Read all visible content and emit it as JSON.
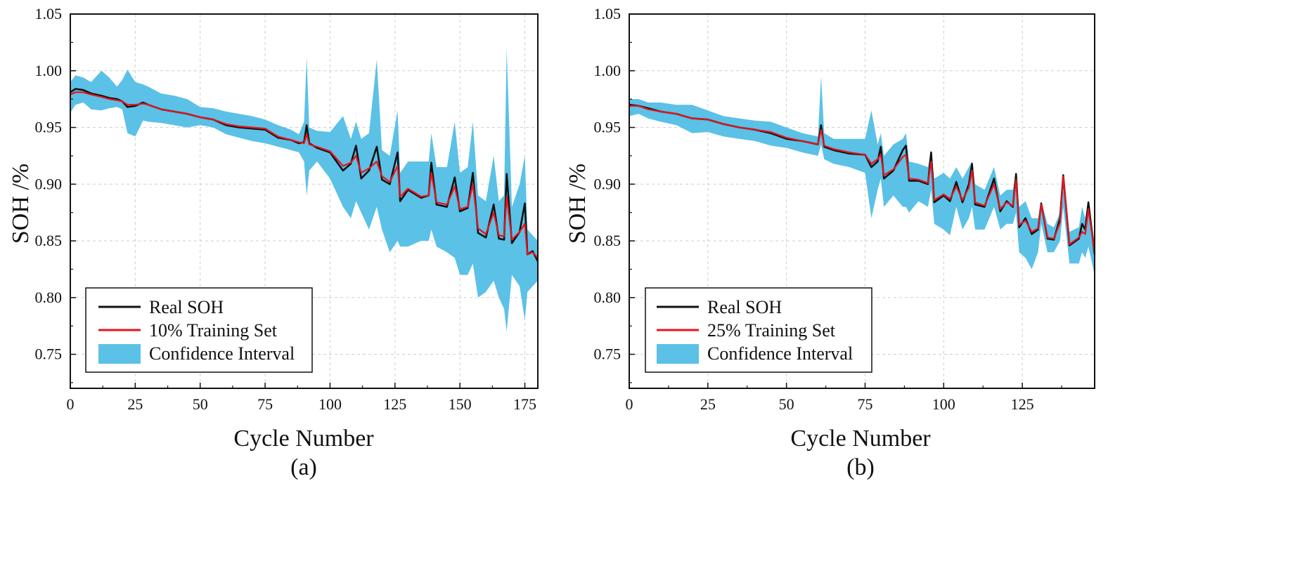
{
  "panels": [
    {
      "caption": "(a)",
      "ylabel": "SOH /%",
      "xlabel": "Cycle Number",
      "legend": [
        "Real SOH",
        "10% Training Set",
        "Confidence Interval"
      ]
    },
    {
      "caption": "(b)",
      "ylabel": "SOH /%",
      "xlabel": "Cycle Number",
      "legend": [
        "Real SOH",
        "25% Training Set",
        "Confidence Interval"
      ]
    }
  ],
  "colors": {
    "real": "#111111",
    "pred": "#e8141c",
    "ci": "#5bc1e6"
  },
  "chart_data": [
    {
      "type": "line",
      "title": "",
      "xlabel": "Cycle Number",
      "ylabel": "SOH /%",
      "xlim": [
        0,
        180
      ],
      "ylim": [
        0.72,
        1.05
      ],
      "xticks": [
        0,
        25,
        50,
        75,
        100,
        125,
        150,
        175
      ],
      "yticks": [
        0.75,
        0.8,
        0.85,
        0.9,
        0.95,
        1.0,
        1.05
      ],
      "grid": true,
      "legend_position": "bottom-left",
      "caption": "(a)",
      "series": [
        {
          "name": "Real SOH",
          "x": [
            0,
            2,
            5,
            8,
            12,
            15,
            18,
            20,
            22,
            25,
            28,
            30,
            35,
            40,
            45,
            50,
            55,
            60,
            65,
            70,
            75,
            80,
            85,
            88,
            90,
            91,
            92,
            95,
            100,
            105,
            108,
            110,
            112,
            115,
            118,
            120,
            123,
            126,
            127,
            130,
            135,
            138,
            139,
            141,
            145,
            148,
            150,
            153,
            155,
            157,
            160,
            163,
            165,
            167,
            168,
            170,
            173,
            175,
            176,
            178,
            180
          ],
          "y": [
            0.981,
            0.984,
            0.983,
            0.98,
            0.978,
            0.976,
            0.975,
            0.973,
            0.968,
            0.969,
            0.972,
            0.97,
            0.966,
            0.964,
            0.962,
            0.959,
            0.957,
            0.952,
            0.95,
            0.949,
            0.948,
            0.941,
            0.939,
            0.936,
            0.937,
            0.952,
            0.936,
            0.932,
            0.928,
            0.912,
            0.918,
            0.934,
            0.905,
            0.912,
            0.933,
            0.904,
            0.9,
            0.928,
            0.885,
            0.895,
            0.888,
            0.89,
            0.919,
            0.882,
            0.88,
            0.906,
            0.876,
            0.879,
            0.91,
            0.857,
            0.853,
            0.882,
            0.852,
            0.851,
            0.909,
            0.848,
            0.858,
            0.883,
            0.838,
            0.841,
            0.832
          ]
        },
        {
          "name": "10% Training Set",
          "x": [
            0,
            2,
            5,
            8,
            12,
            15,
            18,
            20,
            22,
            25,
            28,
            30,
            35,
            40,
            45,
            50,
            55,
            60,
            65,
            70,
            75,
            80,
            85,
            88,
            90,
            91,
            92,
            95,
            100,
            105,
            108,
            110,
            112,
            115,
            118,
            120,
            123,
            126,
            127,
            130,
            135,
            138,
            139,
            141,
            145,
            148,
            150,
            153,
            155,
            157,
            160,
            163,
            165,
            167,
            168,
            170,
            173,
            175,
            176,
            178,
            180
          ],
          "y": [
            0.979,
            0.981,
            0.981,
            0.979,
            0.977,
            0.975,
            0.974,
            0.973,
            0.97,
            0.97,
            0.971,
            0.97,
            0.966,
            0.964,
            0.962,
            0.959,
            0.957,
            0.953,
            0.951,
            0.95,
            0.949,
            0.942,
            0.939,
            0.937,
            0.936,
            0.944,
            0.935,
            0.933,
            0.929,
            0.916,
            0.919,
            0.925,
            0.91,
            0.914,
            0.92,
            0.907,
            0.902,
            0.916,
            0.889,
            0.896,
            0.889,
            0.89,
            0.91,
            0.884,
            0.882,
            0.898,
            0.878,
            0.88,
            0.9,
            0.861,
            0.856,
            0.875,
            0.855,
            0.854,
            0.889,
            0.851,
            0.858,
            0.865,
            0.838,
            0.84,
            0.835
          ]
        },
        {
          "name": "Confidence Interval",
          "x": [
            0,
            2,
            5,
            8,
            12,
            15,
            18,
            20,
            22,
            25,
            28,
            30,
            35,
            40,
            45,
            50,
            55,
            60,
            65,
            70,
            75,
            80,
            85,
            88,
            90,
            91,
            92,
            95,
            100,
            105,
            108,
            110,
            112,
            115,
            118,
            120,
            123,
            126,
            127,
            130,
            135,
            138,
            139,
            141,
            145,
            148,
            150,
            153,
            155,
            157,
            160,
            163,
            165,
            167,
            168,
            170,
            173,
            175,
            176,
            178,
            180
          ],
          "lower": [
            0.963,
            0.97,
            0.972,
            0.966,
            0.965,
            0.967,
            0.968,
            0.966,
            0.945,
            0.942,
            0.956,
            0.955,
            0.954,
            0.952,
            0.95,
            0.952,
            0.95,
            0.944,
            0.941,
            0.938,
            0.936,
            0.933,
            0.93,
            0.928,
            0.92,
            0.89,
            0.912,
            0.92,
            0.905,
            0.88,
            0.87,
            0.885,
            0.875,
            0.86,
            0.88,
            0.86,
            0.84,
            0.85,
            0.845,
            0.845,
            0.85,
            0.85,
            0.86,
            0.845,
            0.84,
            0.835,
            0.82,
            0.82,
            0.83,
            0.8,
            0.805,
            0.815,
            0.8,
            0.79,
            0.77,
            0.82,
            0.81,
            0.78,
            0.805,
            0.81,
            0.815
          ],
          "upper": [
            0.99,
            0.996,
            0.994,
            0.99,
            1.0,
            0.994,
            0.986,
            0.992,
            1.001,
            0.99,
            0.988,
            0.986,
            0.98,
            0.978,
            0.975,
            0.968,
            0.967,
            0.964,
            0.962,
            0.96,
            0.957,
            0.952,
            0.948,
            0.944,
            0.955,
            1.012,
            0.95,
            0.947,
            0.946,
            0.96,
            0.94,
            0.955,
            0.94,
            0.945,
            1.01,
            0.93,
            0.925,
            0.965,
            0.91,
            0.92,
            0.92,
            0.92,
            0.945,
            0.915,
            0.915,
            0.955,
            0.91,
            0.915,
            0.955,
            0.89,
            0.885,
            0.925,
            0.885,
            0.89,
            1.02,
            0.88,
            0.9,
            0.925,
            0.86,
            0.855,
            0.85
          ]
        }
      ]
    },
    {
      "type": "line",
      "title": "",
      "xlabel": "Cycle Number",
      "ylabel": "SOH /%",
      "xlim": [
        0,
        148
      ],
      "ylim": [
        0.72,
        1.05
      ],
      "xticks": [
        0,
        25,
        50,
        75,
        100,
        125
      ],
      "yticks": [
        0.75,
        0.8,
        0.85,
        0.9,
        0.95,
        1.0,
        1.05
      ],
      "grid": true,
      "legend_position": "bottom-left",
      "caption": "(b)",
      "series": [
        {
          "name": "Real SOH",
          "x": [
            0,
            3,
            6,
            10,
            15,
            20,
            25,
            30,
            35,
            40,
            45,
            50,
            55,
            60,
            61,
            62,
            65,
            70,
            75,
            77,
            79,
            80,
            81,
            84,
            87,
            88,
            89,
            92,
            95,
            96,
            97,
            100,
            102,
            104,
            106,
            108,
            109,
            110,
            113,
            116,
            118,
            120,
            122,
            123,
            124,
            126,
            128,
            130,
            131,
            133,
            135,
            137,
            138,
            140,
            143,
            144,
            145,
            146,
            148
          ],
          "y": [
            0.97,
            0.969,
            0.967,
            0.964,
            0.962,
            0.958,
            0.957,
            0.953,
            0.95,
            0.948,
            0.945,
            0.94,
            0.938,
            0.935,
            0.952,
            0.933,
            0.93,
            0.927,
            0.926,
            0.915,
            0.92,
            0.933,
            0.905,
            0.912,
            0.93,
            0.934,
            0.903,
            0.903,
            0.9,
            0.928,
            0.884,
            0.89,
            0.885,
            0.902,
            0.884,
            0.9,
            0.918,
            0.882,
            0.88,
            0.905,
            0.876,
            0.885,
            0.88,
            0.909,
            0.862,
            0.87,
            0.856,
            0.86,
            0.883,
            0.852,
            0.851,
            0.87,
            0.908,
            0.846,
            0.852,
            0.865,
            0.86,
            0.884,
            0.838
          ]
        },
        {
          "name": "25% Training Set",
          "x": [
            0,
            3,
            6,
            10,
            15,
            20,
            25,
            30,
            35,
            40,
            45,
            50,
            55,
            60,
            61,
            62,
            65,
            70,
            75,
            77,
            79,
            80,
            81,
            84,
            87,
            88,
            89,
            92,
            95,
            96,
            97,
            100,
            102,
            104,
            106,
            108,
            109,
            110,
            113,
            116,
            118,
            120,
            122,
            123,
            124,
            126,
            128,
            130,
            131,
            133,
            135,
            137,
            138,
            140,
            143,
            144,
            145,
            146,
            148
          ],
          "y": [
            0.969,
            0.969,
            0.966,
            0.964,
            0.962,
            0.958,
            0.957,
            0.953,
            0.95,
            0.948,
            0.946,
            0.941,
            0.938,
            0.935,
            0.948,
            0.934,
            0.931,
            0.928,
            0.926,
            0.918,
            0.922,
            0.926,
            0.908,
            0.913,
            0.924,
            0.926,
            0.905,
            0.904,
            0.901,
            0.92,
            0.886,
            0.891,
            0.887,
            0.898,
            0.886,
            0.897,
            0.912,
            0.884,
            0.881,
            0.9,
            0.878,
            0.884,
            0.881,
            0.904,
            0.864,
            0.868,
            0.858,
            0.861,
            0.882,
            0.853,
            0.852,
            0.866,
            0.907,
            0.847,
            0.853,
            0.858,
            0.856,
            0.878,
            0.84
          ]
        },
        {
          "name": "Confidence Interval",
          "x": [
            0,
            3,
            6,
            10,
            15,
            20,
            25,
            30,
            35,
            40,
            45,
            50,
            55,
            60,
            61,
            62,
            65,
            70,
            75,
            77,
            79,
            80,
            81,
            84,
            87,
            88,
            89,
            92,
            95,
            96,
            97,
            100,
            102,
            104,
            106,
            108,
            109,
            110,
            113,
            116,
            118,
            120,
            122,
            123,
            124,
            126,
            128,
            130,
            131,
            133,
            135,
            137,
            138,
            140,
            143,
            144,
            145,
            146,
            148
          ],
          "lower": [
            0.96,
            0.962,
            0.958,
            0.955,
            0.952,
            0.945,
            0.946,
            0.942,
            0.94,
            0.938,
            0.934,
            0.932,
            0.928,
            0.925,
            0.935,
            0.922,
            0.918,
            0.915,
            0.91,
            0.87,
            0.895,
            0.905,
            0.88,
            0.89,
            0.88,
            0.88,
            0.875,
            0.885,
            0.88,
            0.895,
            0.865,
            0.86,
            0.855,
            0.88,
            0.86,
            0.87,
            0.88,
            0.86,
            0.86,
            0.88,
            0.86,
            0.865,
            0.865,
            0.875,
            0.84,
            0.835,
            0.825,
            0.84,
            0.865,
            0.84,
            0.84,
            0.85,
            0.88,
            0.83,
            0.83,
            0.84,
            0.835,
            0.845,
            0.82
          ],
          "upper": [
            0.975,
            0.975,
            0.972,
            0.972,
            0.97,
            0.97,
            0.965,
            0.96,
            0.958,
            0.956,
            0.955,
            0.95,
            0.945,
            0.942,
            0.995,
            0.945,
            0.94,
            0.94,
            0.94,
            0.965,
            0.935,
            0.945,
            0.925,
            0.935,
            0.94,
            0.945,
            0.92,
            0.918,
            0.915,
            0.93,
            0.905,
            0.91,
            0.905,
            0.915,
            0.905,
            0.915,
            0.92,
            0.9,
            0.895,
            0.915,
            0.89,
            0.895,
            0.895,
            0.91,
            0.88,
            0.885,
            0.87,
            0.87,
            0.885,
            0.865,
            0.862,
            0.875,
            0.908,
            0.858,
            0.862,
            0.88,
            0.87,
            0.885,
            0.848
          ]
        }
      ]
    }
  ]
}
